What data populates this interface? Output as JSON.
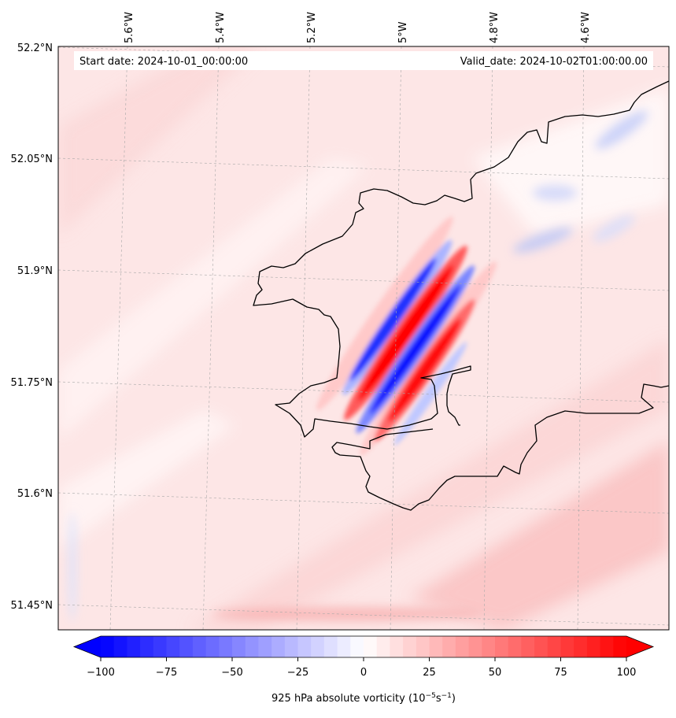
{
  "header": {
    "start_date": "Start date: 2024-10-01_00:00:00",
    "valid_date": "Valid_date: 2024-10-02T01:00:00.00"
  },
  "axes": {
    "lon_ticks": [
      "5.6°W",
      "5.4°W",
      "5.2°W",
      "5°W",
      "4.8°W",
      "4.6°W"
    ],
    "lat_ticks": [
      "52.2°N",
      "52.05°N",
      "51.9°N",
      "51.75°N",
      "51.6°N",
      "51.45°N"
    ]
  },
  "colorbar": {
    "ticks": [
      "−100",
      "−75",
      "−50",
      "−25",
      "0",
      "25",
      "50",
      "75",
      "100"
    ],
    "label_main": "925 hPa absolute vorticity (10",
    "label_exp1": "−5",
    "label_mid": "s",
    "label_exp2": "−1",
    "label_end": ")",
    "min": -100,
    "max": 100,
    "levels": 40,
    "negative_color": "#0000ff",
    "positive_color": "#ff0000"
  },
  "colors": {
    "background_field": "#fde8e8",
    "coastline": "#000000",
    "gridline": "#b0b0b0"
  }
}
